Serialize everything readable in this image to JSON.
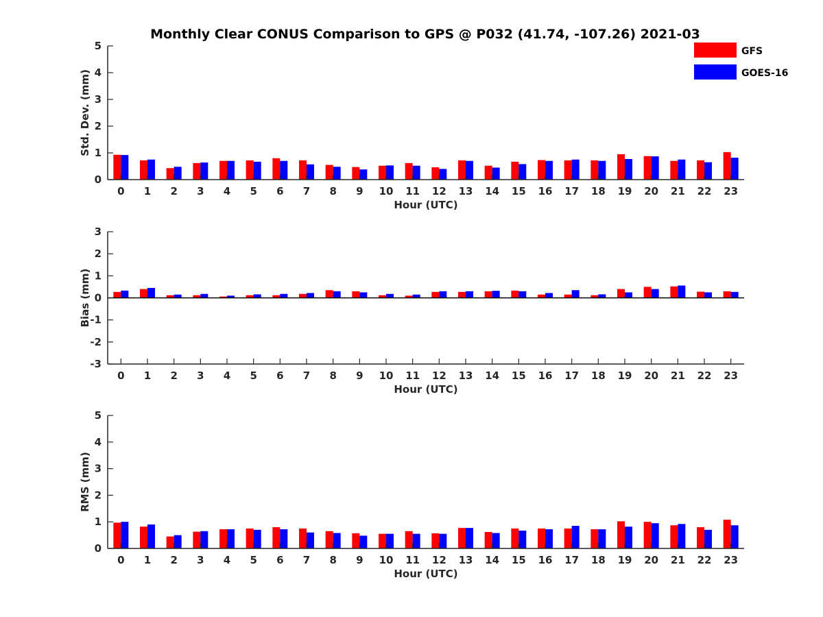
{
  "chart_data": {
    "type": "bar",
    "title": "Monthly Clear CONUS Comparison to GPS @ P032 (41.74, -107.26) 2021-03",
    "legend": [
      {
        "name": "GFS",
        "color": "#ff0000"
      },
      {
        "name": "GOES-16",
        "color": "#0000ff"
      }
    ],
    "legend_position": "top-right",
    "categories": [
      "0",
      "1",
      "2",
      "3",
      "4",
      "5",
      "6",
      "7",
      "8",
      "9",
      "10",
      "11",
      "12",
      "13",
      "14",
      "15",
      "16",
      "17",
      "18",
      "19",
      "20",
      "21",
      "22",
      "23"
    ],
    "panels": [
      {
        "id": "std",
        "ylabel": "Std. Dev. (mm)",
        "xlabel": "Hour (UTC)",
        "ylim": [
          0,
          5
        ],
        "yticks": [
          "0",
          "1",
          "2",
          "3",
          "4",
          "5"
        ],
        "series": [
          {
            "name": "GFS",
            "values": [
              0.93,
              0.72,
              0.43,
              0.62,
              0.7,
              0.72,
              0.8,
              0.72,
              0.55,
              0.47,
              0.52,
              0.62,
              0.46,
              0.72,
              0.52,
              0.67,
              0.73,
              0.72,
              0.72,
              0.95,
              0.88,
              0.7,
              0.72,
              1.03
            ]
          },
          {
            "name": "GOES-16",
            "values": [
              0.92,
              0.75,
              0.48,
              0.64,
              0.7,
              0.67,
              0.7,
              0.57,
              0.48,
              0.38,
              0.53,
              0.52,
              0.4,
              0.7,
              0.45,
              0.58,
              0.7,
              0.75,
              0.7,
              0.77,
              0.87,
              0.75,
              0.65,
              0.82
            ]
          }
        ]
      },
      {
        "id": "bias",
        "ylabel": "Bias (mm)",
        "xlabel": "Hour (UTC)",
        "ylim": [
          -3,
          3
        ],
        "yticks": [
          "-3",
          "-2",
          "-1",
          "0",
          "1",
          "2",
          "3"
        ],
        "series": [
          {
            "name": "GFS",
            "values": [
              0.27,
              0.4,
              0.12,
              0.12,
              0.06,
              0.12,
              0.12,
              0.18,
              0.35,
              0.3,
              0.12,
              0.1,
              0.27,
              0.27,
              0.3,
              0.33,
              0.15,
              0.15,
              0.12,
              0.4,
              0.5,
              0.52,
              0.28,
              0.3
            ]
          },
          {
            "name": "GOES-16",
            "values": [
              0.33,
              0.45,
              0.15,
              0.18,
              0.1,
              0.16,
              0.18,
              0.22,
              0.3,
              0.25,
              0.18,
              0.15,
              0.3,
              0.3,
              0.32,
              0.3,
              0.22,
              0.35,
              0.16,
              0.25,
              0.4,
              0.56,
              0.25,
              0.27
            ]
          }
        ]
      },
      {
        "id": "rms",
        "ylabel": "RMS (mm)",
        "xlabel": "Hour (UTC)",
        "ylim": [
          0,
          5
        ],
        "yticks": [
          "0",
          "1",
          "2",
          "3",
          "4",
          "5"
        ],
        "series": [
          {
            "name": "GFS",
            "values": [
              0.97,
              0.82,
              0.45,
              0.63,
              0.72,
              0.75,
              0.8,
              0.75,
              0.65,
              0.57,
              0.55,
              0.65,
              0.57,
              0.77,
              0.62,
              0.75,
              0.75,
              0.75,
              0.72,
              1.02,
              1.0,
              0.87,
              0.8,
              1.08
            ]
          },
          {
            "name": "GOES-16",
            "values": [
              1.0,
              0.9,
              0.5,
              0.65,
              0.72,
              0.7,
              0.72,
              0.6,
              0.58,
              0.48,
              0.55,
              0.55,
              0.55,
              0.77,
              0.58,
              0.67,
              0.72,
              0.85,
              0.72,
              0.82,
              0.95,
              0.92,
              0.7,
              0.87
            ]
          }
        ]
      }
    ]
  }
}
